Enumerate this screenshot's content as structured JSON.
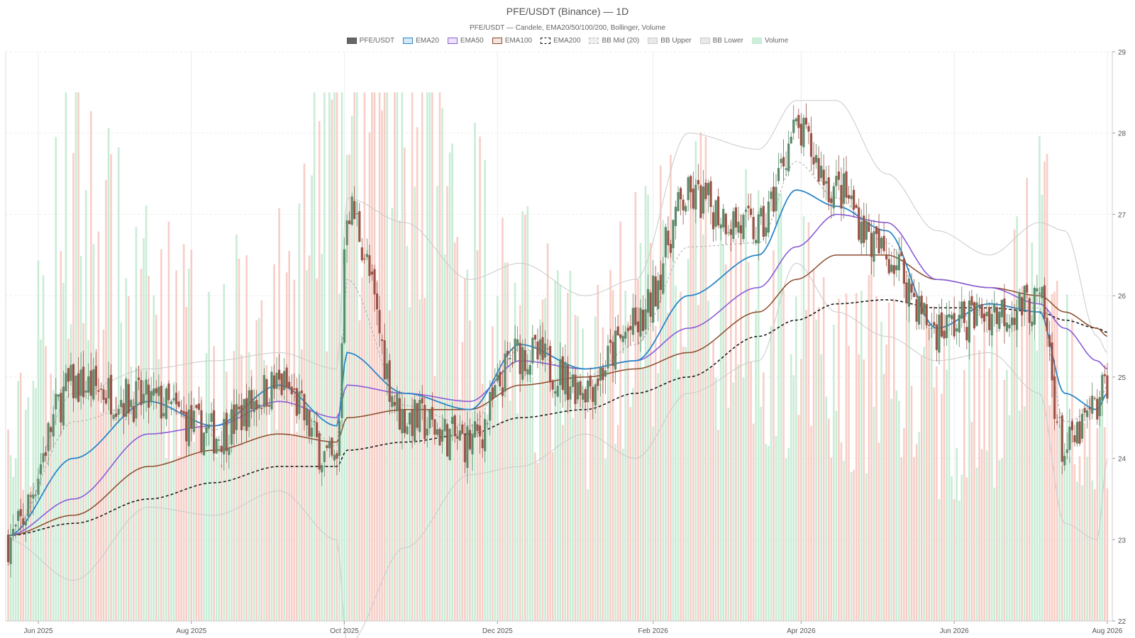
{
  "chart_data": {
    "type": "candlestick",
    "title": "PFE/USDT (Binance) — 1D",
    "subtitle": "PFE/USDT — Candele, EMA20/50/100/200, Bollinger, Volume",
    "x_ticks": [
      "Jun 2025",
      "Aug 2025",
      "Oct 2025",
      "Dec 2025",
      "Feb 2026",
      "Apr 2026",
      "Jun 2026",
      "Aug 2026"
    ],
    "y_ticks": [
      22,
      23,
      24,
      25,
      26,
      27,
      28,
      29
    ],
    "ylim": [
      22,
      29
    ],
    "y_axis_side": "right",
    "grid": true,
    "legend_position": "top",
    "legend": [
      {
        "key": "candles",
        "label": "PFE/USDT",
        "color": "#555555",
        "fill": "#666666",
        "dashed": false
      },
      {
        "key": "ema20",
        "label": "EMA20",
        "color": "#2b86c9",
        "fill": "#d6e8f6",
        "dashed": false
      },
      {
        "key": "ema50",
        "label": "EMA50",
        "color": "#8a5cd8",
        "fill": "#ece4fa",
        "dashed": false
      },
      {
        "key": "ema100",
        "label": "EMA100",
        "color": "#8b4a2b",
        "fill": "#f2e3dc",
        "dashed": false
      },
      {
        "key": "ema200",
        "label": "EMA200",
        "color": "#111111",
        "fill": "#ffffff",
        "dashed": true
      },
      {
        "key": "bbmid",
        "label": "BB Mid (20)",
        "color": "#bbbbbb",
        "fill": "#eeeeee",
        "dashed": true
      },
      {
        "key": "bbup",
        "label": "BB Upper",
        "color": "#cccccc",
        "fill": "#e8e8e8",
        "dashed": false
      },
      {
        "key": "bblow",
        "label": "BB Lower",
        "color": "#cccccc",
        "fill": "#e8e8e8",
        "dashed": false
      },
      {
        "key": "volume",
        "label": "Volume",
        "color": "#bfe9cf",
        "fill": "#cdeedd",
        "dashed": false
      }
    ],
    "colors": {
      "up": "#5b8a6a",
      "down": "#9b5144",
      "vol_up": "#bfe9cf",
      "vol_down": "#f6c6bd"
    },
    "anchors": {
      "x_dates": [
        "2025-05-20",
        "2025-06-15",
        "2025-07-15",
        "2025-08-10",
        "2025-09-05",
        "2025-09-28",
        "2025-10-02",
        "2025-10-25",
        "2025-11-20",
        "2025-12-10",
        "2026-01-05",
        "2026-01-25",
        "2026-02-15",
        "2026-03-15",
        "2026-03-30",
        "2026-04-15",
        "2026-05-05",
        "2026-05-25",
        "2026-06-15",
        "2026-07-05",
        "2026-07-15",
        "2026-07-28",
        "2026-08-01"
      ],
      "close": [
        23.0,
        24.9,
        24.7,
        24.3,
        24.9,
        23.9,
        27.1,
        24.5,
        24.2,
        25.3,
        24.9,
        25.6,
        27.2,
        26.8,
        28.0,
        27.3,
        26.5,
        25.6,
        25.8,
        25.9,
        24.1,
        24.6,
        25.0
      ],
      "ema20": [
        23.05,
        24.0,
        24.7,
        24.4,
        24.9,
        24.4,
        25.3,
        24.8,
        24.6,
        25.4,
        25.1,
        25.2,
        26.0,
        26.5,
        27.3,
        27.1,
        26.8,
        25.6,
        25.9,
        25.8,
        24.8,
        24.6,
        24.8
      ],
      "ema50": [
        23.05,
        23.5,
        24.3,
        24.4,
        24.7,
        24.5,
        24.9,
        24.8,
        24.7,
        25.2,
        25.1,
        25.2,
        25.6,
        26.1,
        26.6,
        27.0,
        26.9,
        26.2,
        26.1,
        25.9,
        25.6,
        25.2,
        25.1
      ],
      "ema100": [
        23.05,
        23.3,
        23.9,
        24.1,
        24.3,
        24.2,
        24.5,
        24.6,
        24.6,
        24.9,
        25.0,
        25.1,
        25.3,
        25.8,
        26.2,
        26.5,
        26.5,
        26.2,
        26.1,
        26.0,
        25.8,
        25.6,
        25.5
      ],
      "ema200": [
        23.05,
        23.2,
        23.5,
        23.7,
        23.9,
        23.9,
        24.1,
        24.2,
        24.3,
        24.5,
        24.6,
        24.8,
        25.0,
        25.5,
        25.7,
        25.9,
        25.95,
        25.85,
        25.85,
        25.8,
        25.7,
        25.6,
        25.55
      ],
      "bb_upper": [
        23.0,
        24.8,
        25.1,
        25.2,
        25.3,
        25.1,
        27.2,
        26.9,
        26.2,
        26.4,
        26.0,
        26.2,
        28.0,
        27.8,
        28.4,
        28.4,
        27.5,
        26.8,
        26.5,
        26.9,
        26.8,
        25.5,
        25.3
      ],
      "bb_lower": [
        23.0,
        22.5,
        23.4,
        23.3,
        23.6,
        23.0,
        21.7,
        22.9,
        23.8,
        23.9,
        24.3,
        24.0,
        24.8,
        25.2,
        26.4,
        25.8,
        25.5,
        25.2,
        25.3,
        24.8,
        23.2,
        23.0,
        24.0
      ],
      "volume": [
        0.3,
        0.75,
        0.55,
        0.5,
        0.55,
        0.9,
        0.85,
        0.95,
        0.7,
        0.55,
        0.45,
        0.6,
        0.65,
        0.6,
        0.55,
        0.45,
        0.5,
        0.4,
        0.4,
        0.7,
        0.45,
        0.45,
        0.35
      ]
    }
  }
}
